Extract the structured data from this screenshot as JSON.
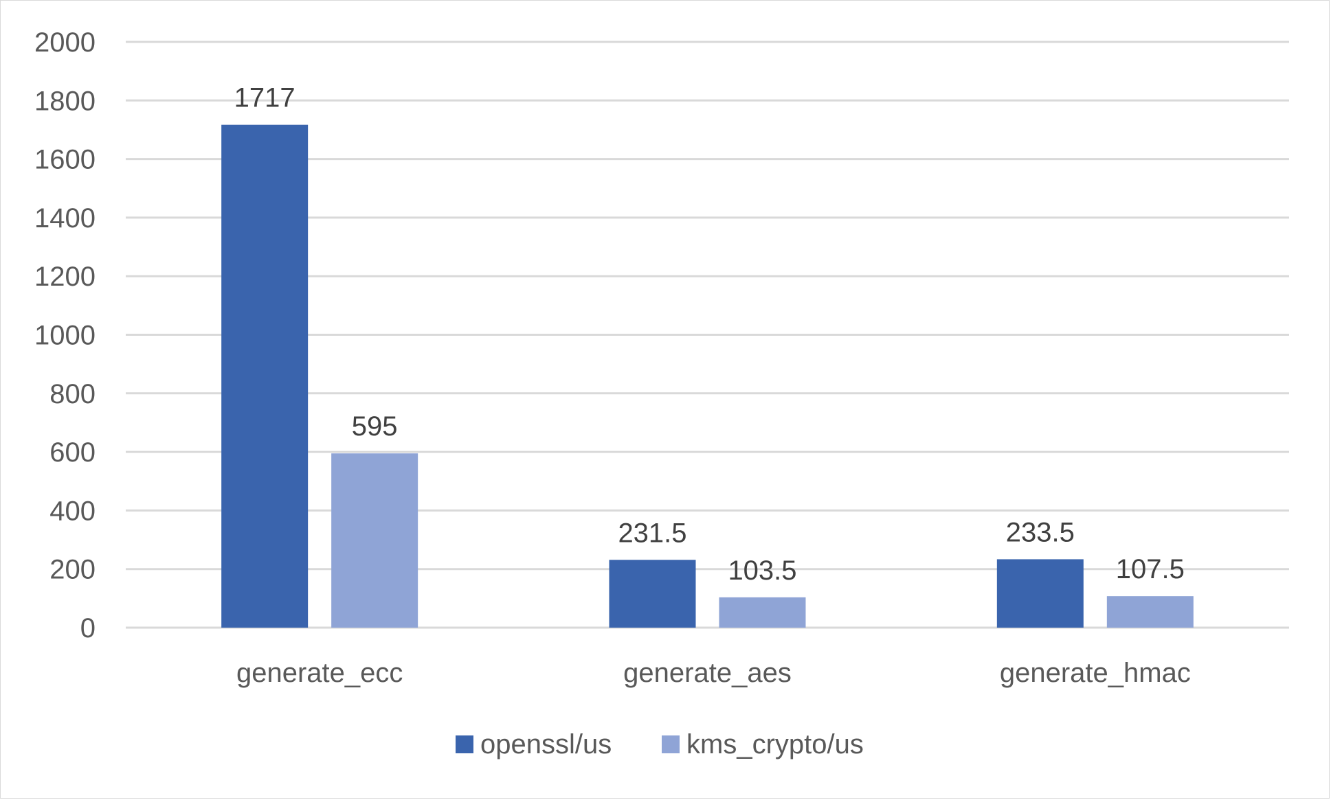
{
  "chart_data": {
    "type": "bar",
    "title": "",
    "xlabel": "",
    "ylabel": "",
    "categories": [
      "generate_ecc",
      "generate_aes",
      "generate_hmac"
    ],
    "series": [
      {
        "name": "openssl/us",
        "values": [
          1717,
          231.5,
          233.5
        ],
        "color": "#3a64ad"
      },
      {
        "name": "kms_crypto/us",
        "values": [
          595,
          103.5,
          107.5
        ],
        "color": "#8fa4d6"
      }
    ],
    "value_labels": [
      [
        "1717",
        "231.5",
        "233.5"
      ],
      [
        "595",
        "103.5",
        "107.5"
      ]
    ],
    "ylim": [
      0,
      2000
    ],
    "yticks": [
      "0",
      "200",
      "400",
      "600",
      "800",
      "1000",
      "1200",
      "1400",
      "1600",
      "1800",
      "2000"
    ],
    "grid": true,
    "legend_position": "bottom"
  }
}
